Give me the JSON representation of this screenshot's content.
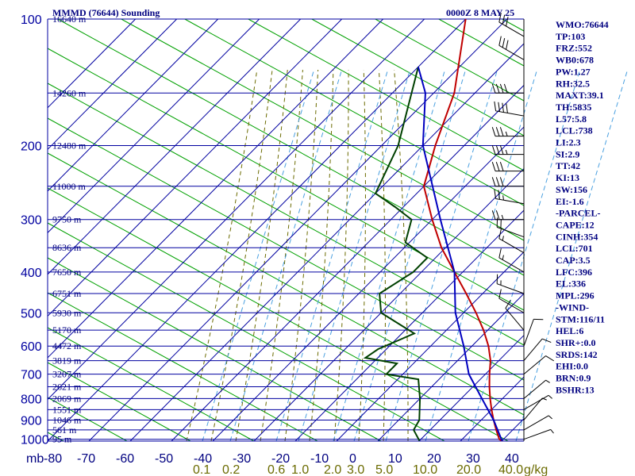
{
  "title": "MMMD (76644) Sounding",
  "datetime": "0000Z  8 MAY 25",
  "chart_data": {
    "type": "line",
    "pressure_levels_mb": [
      100,
      200,
      300,
      400,
      500,
      600,
      700,
      800,
      900,
      1000
    ],
    "pressure_unit": "mb",
    "temperature_ticks": [
      -80,
      -70,
      -60,
      -50,
      -40,
      -30,
      -20,
      -10,
      0,
      10,
      20,
      30,
      40
    ],
    "height_labels": [
      {
        "p": 100,
        "text": "16640 m"
      },
      {
        "p": 150,
        "text": "14260 m"
      },
      {
        "p": 200,
        "text": "12480 m"
      },
      {
        "p": 250,
        "text": "11000 m"
      },
      {
        "p": 300,
        "text": "9750 m"
      },
      {
        "p": 350,
        "text": "8636 m"
      },
      {
        "p": 400,
        "text": "7650 m"
      },
      {
        "p": 450,
        "text": "6751 m"
      },
      {
        "p": 500,
        "text": "5930 m"
      },
      {
        "p": 550,
        "text": "5170 m"
      },
      {
        "p": 600,
        "text": "4472 m"
      },
      {
        "p": 650,
        "text": "3819 m"
      },
      {
        "p": 700,
        "text": "3207 m"
      },
      {
        "p": 750,
        "text": "2621 m"
      },
      {
        "p": 800,
        "text": "2069 m"
      },
      {
        "p": 850,
        "text": "1551 m"
      },
      {
        "p": 900,
        "text": "1046 m"
      },
      {
        "p": 950,
        "text": "561 m"
      },
      {
        "p": 1000,
        "text": "95 m"
      }
    ],
    "mixing_ratio_labels": [
      "0.1",
      "0.2",
      "0.6",
      "1.0",
      "2.0",
      "3.0",
      "5.0",
      "10.0",
      "20.0",
      "40.0"
    ],
    "mixing_ratio_unit": "g/kg",
    "series": [
      {
        "id": "temperature",
        "color": "#c00000",
        "points": [
          {
            "p": 100,
            "t": -80
          },
          {
            "p": 150,
            "t": -65
          },
          {
            "p": 200,
            "t": -57
          },
          {
            "p": 250,
            "t": -50
          },
          {
            "p": 300,
            "t": -40
          },
          {
            "p": 350,
            "t": -31
          },
          {
            "p": 400,
            "t": -22
          },
          {
            "p": 450,
            "t": -14
          },
          {
            "p": 500,
            "t": -7
          },
          {
            "p": 550,
            "t": -1
          },
          {
            "p": 600,
            "t": 4
          },
          {
            "p": 650,
            "t": 8
          },
          {
            "p": 700,
            "t": 11
          },
          {
            "p": 750,
            "t": 14
          },
          {
            "p": 800,
            "t": 17
          },
          {
            "p": 850,
            "t": 20
          },
          {
            "p": 900,
            "t": 23
          },
          {
            "p": 950,
            "t": 26
          },
          {
            "p": 1000,
            "t": 29
          },
          {
            "p": 1008,
            "t": 30
          }
        ]
      },
      {
        "id": "dewpoint",
        "color": "#004000",
        "points": [
          {
            "p": 130,
            "t": -80
          },
          {
            "p": 200,
            "t": -66
          },
          {
            "p": 260,
            "t": -60
          },
          {
            "p": 280,
            "t": -52
          },
          {
            "p": 300,
            "t": -45
          },
          {
            "p": 340,
            "t": -41
          },
          {
            "p": 370,
            "t": -32
          },
          {
            "p": 400,
            "t": -32
          },
          {
            "p": 450,
            "t": -35
          },
          {
            "p": 500,
            "t": -30
          },
          {
            "p": 560,
            "t": -17
          },
          {
            "p": 610,
            "t": -22
          },
          {
            "p": 640,
            "t": -23
          },
          {
            "p": 660,
            "t": -14
          },
          {
            "p": 700,
            "t": -14
          },
          {
            "p": 720,
            "t": -5
          },
          {
            "p": 800,
            "t": 0
          },
          {
            "p": 900,
            "t": 5
          },
          {
            "p": 950,
            "t": 6
          },
          {
            "p": 1008,
            "t": 10
          }
        ]
      },
      {
        "id": "parcel",
        "color": "#0000c0",
        "points": [
          {
            "p": 1008,
            "t": 30
          },
          {
            "p": 900,
            "t": 23
          },
          {
            "p": 800,
            "t": 15
          },
          {
            "p": 700,
            "t": 6
          },
          {
            "p": 600,
            "t": -2
          },
          {
            "p": 500,
            "t": -12
          },
          {
            "p": 400,
            "t": -22
          },
          {
            "p": 300,
            "t": -38
          },
          {
            "p": 200,
            "t": -60
          },
          {
            "p": 150,
            "t": -72
          },
          {
            "p": 130,
            "t": -80
          }
        ]
      }
    ],
    "wind_barbs": [
      {
        "p": 110,
        "dir": 300,
        "spd": 30
      },
      {
        "p": 125,
        "dir": 300,
        "spd": 30
      },
      {
        "p": 150,
        "dir": 270,
        "spd": 40
      },
      {
        "p": 170,
        "dir": 280,
        "spd": 40
      },
      {
        "p": 190,
        "dir": 270,
        "spd": 35
      },
      {
        "p": 210,
        "dir": 270,
        "spd": 35
      },
      {
        "p": 230,
        "dir": 270,
        "spd": 30
      },
      {
        "p": 250,
        "dir": 270,
        "spd": 30
      },
      {
        "p": 275,
        "dir": 280,
        "spd": 25
      },
      {
        "p": 300,
        "dir": 270,
        "spd": 25
      },
      {
        "p": 330,
        "dir": 290,
        "spd": 20
      },
      {
        "p": 360,
        "dir": 300,
        "spd": 15
      },
      {
        "p": 400,
        "dir": 300,
        "spd": 15
      },
      {
        "p": 450,
        "dir": 290,
        "spd": 15
      },
      {
        "p": 500,
        "dir": 300,
        "spd": 10
      },
      {
        "p": 550,
        "dir": 320,
        "spd": 10
      },
      {
        "p": 600,
        "dir": 20,
        "spd": 10
      },
      {
        "p": 650,
        "dir": 40,
        "spd": 10
      },
      {
        "p": 700,
        "dir": 50,
        "spd": 10
      },
      {
        "p": 800,
        "dir": 50,
        "spd": 5
      },
      {
        "p": 850,
        "dir": 60,
        "spd": 5
      },
      {
        "p": 900,
        "dir": 40,
        "spd": 5
      },
      {
        "p": 950,
        "dir": 60,
        "spd": 5
      },
      {
        "p": 1000,
        "dir": 70,
        "spd": 5
      }
    ],
    "colors": {
      "grid": "#0000a0",
      "dry_adiabat": "#00a000",
      "moist_adiabat": "#6b6b00",
      "mixing_ratio": "#4aa0e0",
      "labels": "#000080"
    }
  },
  "indices": [
    "WMO:76644",
    "TP:103",
    "FRZ:552",
    "WB0:678",
    "PW:1.27",
    "RH:32.5",
    "MAXT:39.1",
    "TH:5835",
    "L57:5.8",
    "LCL:738",
    "LI:2.3",
    "SI:2.9",
    "TT:42",
    "KI:13",
    "SW:156",
    "EI:-1.6",
    "-PARCEL-",
    "CAPE:12",
    "CINH:354",
    "LCL:701",
    "CAP:3.5",
    "LFC:396",
    "EL:336",
    "MPL:296",
    "-WIND-",
    "STM:116/11",
    "HEL:6",
    "SHR+:0.0",
    "SRDS:142",
    "EHI:0.0",
    "BRN:0.9",
    "BSHR:13"
  ]
}
